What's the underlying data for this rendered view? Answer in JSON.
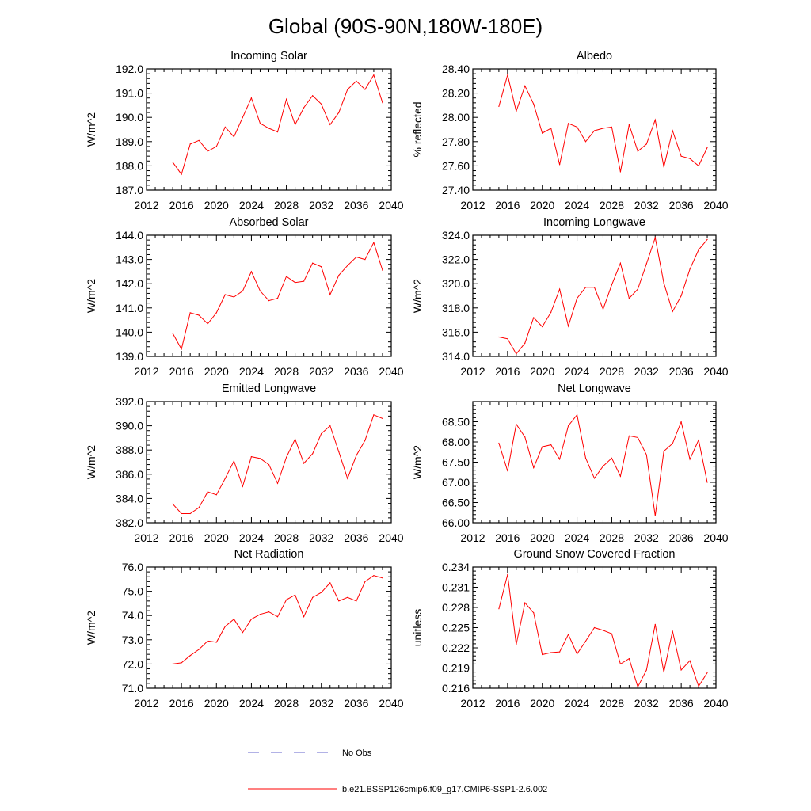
{
  "figure": {
    "title": "Global (90S-90N,180W-180E)"
  },
  "colors": {
    "model_line": "#ff0000",
    "obs_line": "#6666cc",
    "axis": "#000000"
  },
  "legend": {
    "obs_label": "No Obs",
    "model_label": "b.e21.BSSP126cmip6.f09_g17.CMIP6-SSP1-2.6.002"
  },
  "chart_data": [
    {
      "id": "incoming-solar",
      "type": "line",
      "title": "Incoming Solar",
      "xlabel": "",
      "ylabel": "W/m^2",
      "xlim": [
        2012,
        2040
      ],
      "ylim": [
        187.0,
        192.0
      ],
      "xticks": [
        2012,
        2016,
        2020,
        2024,
        2028,
        2032,
        2036,
        2040
      ],
      "yticks": [
        187.0,
        188.0,
        189.0,
        190.0,
        191.0,
        192.0
      ],
      "ytick_labels": [
        "187.0",
        "188.0",
        "189.0",
        "190.0",
        "191.0",
        "192.0"
      ],
      "series": [
        {
          "name": "b.e21.BSSP126cmip6.f09_g17.CMIP6-SSP1-2.6.002",
          "x": [
            2015,
            2016,
            2017,
            2018,
            2019,
            2020,
            2021,
            2022,
            2023,
            2024,
            2025,
            2026,
            2027,
            2028,
            2029,
            2030,
            2031,
            2032,
            2033,
            2034,
            2035,
            2036,
            2037,
            2038,
            2039
          ],
          "values": [
            188.15,
            187.65,
            188.9,
            189.05,
            188.6,
            188.8,
            189.6,
            189.2,
            190.0,
            190.8,
            189.75,
            189.55,
            189.4,
            190.75,
            189.7,
            190.4,
            190.9,
            190.55,
            189.7,
            190.2,
            191.15,
            191.5,
            191.15,
            191.75,
            190.6
          ]
        }
      ]
    },
    {
      "id": "albedo",
      "type": "line",
      "title": "Albedo",
      "xlabel": "",
      "ylabel": "% reflected",
      "xlim": [
        2012,
        2040
      ],
      "ylim": [
        27.4,
        28.4
      ],
      "xticks": [
        2012,
        2016,
        2020,
        2024,
        2028,
        2032,
        2036,
        2040
      ],
      "yticks": [
        27.4,
        27.6,
        27.8,
        28.0,
        28.2,
        28.4
      ],
      "ytick_labels": [
        "27.40",
        "27.60",
        "27.80",
        "28.00",
        "28.20",
        "28.40"
      ],
      "series": [
        {
          "name": "b.e21.BSSP126cmip6.f09_g17.CMIP6-SSP1-2.6.002",
          "x": [
            2015,
            2016,
            2017,
            2018,
            2019,
            2020,
            2021,
            2022,
            2023,
            2024,
            2025,
            2026,
            2027,
            2028,
            2029,
            2030,
            2031,
            2032,
            2033,
            2034,
            2035,
            2036,
            2037,
            2038,
            2039
          ],
          "values": [
            28.09,
            28.35,
            28.05,
            28.26,
            28.11,
            27.87,
            27.91,
            27.61,
            27.95,
            27.92,
            27.8,
            27.89,
            27.91,
            27.92,
            27.55,
            27.94,
            27.72,
            27.78,
            27.98,
            27.59,
            27.89,
            27.68,
            27.66,
            27.6,
            27.75
          ]
        }
      ]
    },
    {
      "id": "absorbed-solar",
      "type": "line",
      "title": "Absorbed Solar",
      "xlabel": "",
      "ylabel": "W/m^2",
      "xlim": [
        2012,
        2040
      ],
      "ylim": [
        139.0,
        144.0
      ],
      "xticks": [
        2012,
        2016,
        2020,
        2024,
        2028,
        2032,
        2036,
        2040
      ],
      "yticks": [
        139.0,
        140.0,
        141.0,
        142.0,
        143.0,
        144.0
      ],
      "ytick_labels": [
        "139.0",
        "140.0",
        "141.0",
        "142.0",
        "143.0",
        "144.0"
      ],
      "series": [
        {
          "name": "b.e21.BSSP126cmip6.f09_g17.CMIP6-SSP1-2.6.002",
          "x": [
            2015,
            2016,
            2017,
            2018,
            2019,
            2020,
            2021,
            2022,
            2023,
            2024,
            2025,
            2026,
            2027,
            2028,
            2029,
            2030,
            2031,
            2032,
            2033,
            2034,
            2035,
            2036,
            2037,
            2038,
            2039
          ],
          "values": [
            139.95,
            139.3,
            140.8,
            140.7,
            140.35,
            140.8,
            141.55,
            141.45,
            141.7,
            142.5,
            141.7,
            141.3,
            141.4,
            142.3,
            142.05,
            142.1,
            142.85,
            142.7,
            141.55,
            142.35,
            142.75,
            143.1,
            143.0,
            143.7,
            142.55
          ]
        }
      ]
    },
    {
      "id": "incoming-longwave",
      "type": "line",
      "title": "Incoming Longwave",
      "xlabel": "",
      "ylabel": "W/m^2",
      "xlim": [
        2012,
        2040
      ],
      "ylim": [
        314.0,
        324.0
      ],
      "xticks": [
        2012,
        2016,
        2020,
        2024,
        2028,
        2032,
        2036,
        2040
      ],
      "yticks": [
        314.0,
        316.0,
        318.0,
        320.0,
        322.0,
        324.0
      ],
      "ytick_labels": [
        "314.0",
        "316.0",
        "318.0",
        "320.0",
        "322.0",
        "324.0"
      ],
      "series": [
        {
          "name": "b.e21.BSSP126cmip6.f09_g17.CMIP6-SSP1-2.6.002",
          "x": [
            2015,
            2016,
            2017,
            2018,
            2019,
            2020,
            2021,
            2022,
            2023,
            2024,
            2025,
            2026,
            2027,
            2028,
            2029,
            2030,
            2031,
            2032,
            2033,
            2034,
            2035,
            2036,
            2037,
            2038,
            2039
          ],
          "values": [
            315.6,
            315.45,
            314.2,
            315.1,
            317.2,
            316.45,
            317.65,
            319.55,
            316.5,
            318.8,
            319.7,
            319.7,
            317.9,
            319.9,
            321.7,
            318.8,
            319.55,
            321.65,
            323.8,
            320.05,
            317.7,
            319.0,
            321.2,
            322.8,
            323.65
          ]
        }
      ]
    },
    {
      "id": "emitted-longwave",
      "type": "line",
      "title": "Emitted Longwave",
      "xlabel": "",
      "ylabel": "W/m^2",
      "xlim": [
        2012,
        2040
      ],
      "ylim": [
        382.0,
        392.0
      ],
      "xticks": [
        2012,
        2016,
        2020,
        2024,
        2028,
        2032,
        2036,
        2040
      ],
      "yticks": [
        382.0,
        384.0,
        386.0,
        388.0,
        390.0,
        392.0
      ],
      "ytick_labels": [
        "382.0",
        "384.0",
        "386.0",
        "388.0",
        "390.0",
        "392.0"
      ],
      "series": [
        {
          "name": "b.e21.BSSP126cmip6.f09_g17.CMIP6-SSP1-2.6.002",
          "x": [
            2015,
            2016,
            2017,
            2018,
            2019,
            2020,
            2021,
            2022,
            2023,
            2024,
            2025,
            2026,
            2027,
            2028,
            2029,
            2030,
            2031,
            2032,
            2033,
            2034,
            2035,
            2036,
            2037,
            2038,
            2039
          ],
          "values": [
            383.55,
            382.75,
            382.75,
            383.25,
            384.55,
            384.3,
            385.65,
            387.1,
            385.0,
            387.45,
            387.3,
            386.8,
            385.25,
            387.4,
            388.9,
            386.9,
            387.7,
            389.35,
            390.0,
            387.85,
            385.65,
            387.55,
            388.8,
            390.9,
            390.6
          ]
        }
      ]
    },
    {
      "id": "net-longwave",
      "type": "line",
      "title": "Net Longwave",
      "xlabel": "",
      "ylabel": "W/m^2",
      "xlim": [
        2012,
        2040
      ],
      "ylim": [
        66.0,
        69.0
      ],
      "xticks": [
        2012,
        2016,
        2020,
        2024,
        2028,
        2032,
        2036,
        2040
      ],
      "yticks": [
        66.0,
        66.5,
        67.0,
        67.5,
        68.0,
        68.5
      ],
      "ytick_labels": [
        "66.00",
        "66.50",
        "67.00",
        "67.50",
        "68.00",
        "68.50"
      ],
      "series": [
        {
          "name": "b.e21.BSSP126cmip6.f09_g17.CMIP6-SSP1-2.6.002",
          "x": [
            2015,
            2016,
            2017,
            2018,
            2019,
            2020,
            2021,
            2022,
            2023,
            2024,
            2025,
            2026,
            2027,
            2028,
            2029,
            2030,
            2031,
            2032,
            2033,
            2034,
            2035,
            2036,
            2037,
            2038,
            2039
          ],
          "values": [
            67.97,
            67.28,
            68.44,
            68.12,
            67.36,
            67.88,
            67.93,
            67.57,
            68.4,
            68.67,
            67.6,
            67.1,
            67.4,
            67.6,
            67.15,
            68.15,
            68.11,
            67.68,
            66.17,
            67.77,
            67.96,
            68.5,
            67.57,
            68.05,
            67.0
          ]
        }
      ]
    },
    {
      "id": "net-radiation",
      "type": "line",
      "title": "Net Radiation",
      "xlabel": "",
      "ylabel": "W/m^2",
      "xlim": [
        2012,
        2040
      ],
      "ylim": [
        71.0,
        76.0
      ],
      "xticks": [
        2012,
        2016,
        2020,
        2024,
        2028,
        2032,
        2036,
        2040
      ],
      "yticks": [
        71.0,
        72.0,
        73.0,
        74.0,
        75.0,
        76.0
      ],
      "ytick_labels": [
        "71.0",
        "72.0",
        "73.0",
        "74.0",
        "75.0",
        "76.0"
      ],
      "series": [
        {
          "name": "b.e21.BSSP126cmip6.f09_g17.CMIP6-SSP1-2.6.002",
          "x": [
            2015,
            2016,
            2017,
            2018,
            2019,
            2020,
            2021,
            2022,
            2023,
            2024,
            2025,
            2026,
            2027,
            2028,
            2029,
            2030,
            2031,
            2032,
            2033,
            2034,
            2035,
            2036,
            2037,
            2038,
            2039
          ],
          "values": [
            72.0,
            72.05,
            72.35,
            72.6,
            72.95,
            72.9,
            73.55,
            73.85,
            73.3,
            73.85,
            74.05,
            74.15,
            73.95,
            74.65,
            74.85,
            73.95,
            74.75,
            74.95,
            75.35,
            74.6,
            74.75,
            74.6,
            75.4,
            75.65,
            75.55
          ]
        }
      ]
    },
    {
      "id": "ground-snow-covered-fraction",
      "type": "line",
      "title": "Ground Snow Covered Fraction",
      "xlabel": "",
      "ylabel": "unitless",
      "xlim": [
        2012,
        2040
      ],
      "ylim": [
        0.216,
        0.234
      ],
      "xticks": [
        2012,
        2016,
        2020,
        2024,
        2028,
        2032,
        2036,
        2040
      ],
      "yticks": [
        0.216,
        0.219,
        0.222,
        0.225,
        0.228,
        0.231,
        0.234
      ],
      "ytick_labels": [
        "0.216",
        "0.219",
        "0.222",
        "0.225",
        "0.228",
        "0.231",
        "0.234"
      ],
      "series": [
        {
          "name": "b.e21.BSSP126cmip6.f09_g17.CMIP6-SSP1-2.6.002",
          "x": [
            2015,
            2016,
            2017,
            2018,
            2019,
            2020,
            2021,
            2022,
            2023,
            2024,
            2025,
            2026,
            2027,
            2028,
            2029,
            2030,
            2031,
            2032,
            2033,
            2034,
            2035,
            2036,
            2037,
            2038,
            2039
          ],
          "values": [
            0.2278,
            0.2329,
            0.2225,
            0.2287,
            0.2272,
            0.221,
            0.2213,
            0.2214,
            0.224,
            0.2211,
            0.223,
            0.225,
            0.2246,
            0.2241,
            0.2196,
            0.2204,
            0.2162,
            0.2187,
            0.2255,
            0.2184,
            0.2245,
            0.2187,
            0.2201,
            0.2163,
            0.2183
          ]
        }
      ]
    }
  ]
}
